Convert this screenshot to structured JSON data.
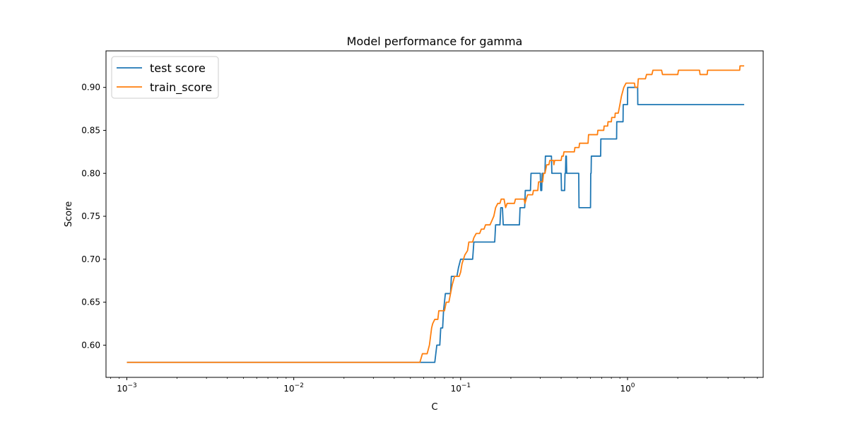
{
  "chart_data": {
    "type": "line",
    "title": "Model performance for gamma",
    "xlabel": "C",
    "ylabel": "Score",
    "xscale": "log",
    "xlim": [
      0.00075,
      6.5
    ],
    "ylim": [
      0.5625,
      0.9425
    ],
    "x_ticks": [
      {
        "value": 0.001,
        "base": "10",
        "exp": "−3"
      },
      {
        "value": 0.01,
        "base": "10",
        "exp": "−2"
      },
      {
        "value": 0.1,
        "base": "10",
        "exp": "−1"
      },
      {
        "value": 1,
        "base": "10",
        "exp": "0"
      }
    ],
    "y_ticks": [
      {
        "value": 0.6,
        "label": "0.60"
      },
      {
        "value": 0.65,
        "label": "0.65"
      },
      {
        "value": 0.7,
        "label": "0.70"
      },
      {
        "value": 0.75,
        "label": "0.75"
      },
      {
        "value": 0.8,
        "label": "0.80"
      },
      {
        "value": 0.85,
        "label": "0.85"
      },
      {
        "value": 0.9,
        "label": "0.90"
      }
    ],
    "legend_position": "top-left",
    "series": [
      {
        "name": "test score",
        "color": "#1f77b4",
        "points": [
          [
            0.001,
            0.58
          ],
          [
            0.057,
            0.58
          ],
          [
            0.07,
            0.58
          ],
          [
            0.072,
            0.6
          ],
          [
            0.075,
            0.6
          ],
          [
            0.076,
            0.62
          ],
          [
            0.078,
            0.62
          ],
          [
            0.079,
            0.64
          ],
          [
            0.081,
            0.66
          ],
          [
            0.087,
            0.66
          ],
          [
            0.088,
            0.68
          ],
          [
            0.095,
            0.68
          ],
          [
            0.097,
            0.69
          ],
          [
            0.1,
            0.7
          ],
          [
            0.118,
            0.7
          ],
          [
            0.12,
            0.72
          ],
          [
            0.16,
            0.72
          ],
          [
            0.162,
            0.74
          ],
          [
            0.172,
            0.74
          ],
          [
            0.174,
            0.76
          ],
          [
            0.178,
            0.76
          ],
          [
            0.18,
            0.74
          ],
          [
            0.225,
            0.74
          ],
          [
            0.227,
            0.76
          ],
          [
            0.242,
            0.76
          ],
          [
            0.244,
            0.78
          ],
          [
            0.262,
            0.78
          ],
          [
            0.264,
            0.8
          ],
          [
            0.3,
            0.8
          ],
          [
            0.302,
            0.78
          ],
          [
            0.306,
            0.78
          ],
          [
            0.308,
            0.8
          ],
          [
            0.32,
            0.8
          ],
          [
            0.322,
            0.82
          ],
          [
            0.35,
            0.82
          ],
          [
            0.352,
            0.8
          ],
          [
            0.4,
            0.8
          ],
          [
            0.402,
            0.78
          ],
          [
            0.42,
            0.78
          ],
          [
            0.422,
            0.8
          ],
          [
            0.425,
            0.8
          ],
          [
            0.427,
            0.82
          ],
          [
            0.43,
            0.82
          ],
          [
            0.432,
            0.8
          ],
          [
            0.51,
            0.8
          ],
          [
            0.512,
            0.76
          ],
          [
            0.6,
            0.76
          ],
          [
            0.602,
            0.8
          ],
          [
            0.605,
            0.8
          ],
          [
            0.607,
            0.82
          ],
          [
            0.69,
            0.82
          ],
          [
            0.692,
            0.84
          ],
          [
            0.86,
            0.84
          ],
          [
            0.862,
            0.86
          ],
          [
            0.94,
            0.86
          ],
          [
            0.942,
            0.88
          ],
          [
            1.0,
            0.88
          ],
          [
            1.002,
            0.9
          ],
          [
            1.15,
            0.9
          ],
          [
            1.152,
            0.88
          ],
          [
            5.0,
            0.88
          ]
        ]
      },
      {
        "name": "train_score",
        "color": "#ff7f0e",
        "points": [
          [
            0.001,
            0.58
          ],
          [
            0.057,
            0.58
          ],
          [
            0.059,
            0.59
          ],
          [
            0.063,
            0.59
          ],
          [
            0.065,
            0.6
          ],
          [
            0.066,
            0.61
          ],
          [
            0.067,
            0.62
          ],
          [
            0.068,
            0.625
          ],
          [
            0.07,
            0.63
          ],
          [
            0.073,
            0.63
          ],
          [
            0.074,
            0.64
          ],
          [
            0.08,
            0.64
          ],
          [
            0.082,
            0.65
          ],
          [
            0.085,
            0.65
          ],
          [
            0.087,
            0.66
          ],
          [
            0.089,
            0.67
          ],
          [
            0.092,
            0.68
          ],
          [
            0.098,
            0.68
          ],
          [
            0.1,
            0.685
          ],
          [
            0.102,
            0.695
          ],
          [
            0.104,
            0.7
          ],
          [
            0.106,
            0.705
          ],
          [
            0.11,
            0.71
          ],
          [
            0.112,
            0.72
          ],
          [
            0.118,
            0.72
          ],
          [
            0.12,
            0.725
          ],
          [
            0.124,
            0.73
          ],
          [
            0.13,
            0.73
          ],
          [
            0.133,
            0.735
          ],
          [
            0.138,
            0.735
          ],
          [
            0.141,
            0.74
          ],
          [
            0.15,
            0.74
          ],
          [
            0.154,
            0.745
          ],
          [
            0.158,
            0.75
          ],
          [
            0.162,
            0.76
          ],
          [
            0.167,
            0.765
          ],
          [
            0.172,
            0.765
          ],
          [
            0.175,
            0.77
          ],
          [
            0.182,
            0.77
          ],
          [
            0.186,
            0.76
          ],
          [
            0.19,
            0.765
          ],
          [
            0.21,
            0.765
          ],
          [
            0.213,
            0.77
          ],
          [
            0.24,
            0.77
          ],
          [
            0.243,
            0.765
          ],
          [
            0.247,
            0.77
          ],
          [
            0.252,
            0.775
          ],
          [
            0.27,
            0.775
          ],
          [
            0.273,
            0.78
          ],
          [
            0.29,
            0.78
          ],
          [
            0.293,
            0.79
          ],
          [
            0.31,
            0.79
          ],
          [
            0.314,
            0.8
          ],
          [
            0.32,
            0.8
          ],
          [
            0.324,
            0.805
          ],
          [
            0.328,
            0.81
          ],
          [
            0.338,
            0.81
          ],
          [
            0.342,
            0.815
          ],
          [
            0.36,
            0.815
          ],
          [
            0.362,
            0.81
          ],
          [
            0.366,
            0.815
          ],
          [
            0.4,
            0.815
          ],
          [
            0.404,
            0.82
          ],
          [
            0.412,
            0.82
          ],
          [
            0.416,
            0.825
          ],
          [
            0.48,
            0.825
          ],
          [
            0.484,
            0.83
          ],
          [
            0.512,
            0.83
          ],
          [
            0.516,
            0.835
          ],
          [
            0.58,
            0.835
          ],
          [
            0.584,
            0.845
          ],
          [
            0.66,
            0.845
          ],
          [
            0.664,
            0.85
          ],
          [
            0.72,
            0.85
          ],
          [
            0.724,
            0.855
          ],
          [
            0.76,
            0.855
          ],
          [
            0.764,
            0.86
          ],
          [
            0.8,
            0.86
          ],
          [
            0.804,
            0.865
          ],
          [
            0.84,
            0.865
          ],
          [
            0.844,
            0.87
          ],
          [
            0.88,
            0.87
          ],
          [
            0.9,
            0.88
          ],
          [
            0.92,
            0.89
          ],
          [
            0.95,
            0.9
          ],
          [
            0.98,
            0.905
          ],
          [
            1.1,
            0.905
          ],
          [
            1.11,
            0.9
          ],
          [
            1.15,
            0.9
          ],
          [
            1.16,
            0.91
          ],
          [
            1.28,
            0.91
          ],
          [
            1.3,
            0.915
          ],
          [
            1.4,
            0.915
          ],
          [
            1.42,
            0.92
          ],
          [
            1.6,
            0.92
          ],
          [
            1.62,
            0.915
          ],
          [
            2.0,
            0.915
          ],
          [
            2.02,
            0.92
          ],
          [
            2.7,
            0.92
          ],
          [
            2.72,
            0.915
          ],
          [
            3.0,
            0.915
          ],
          [
            3.02,
            0.92
          ],
          [
            4.7,
            0.92
          ],
          [
            4.72,
            0.925
          ],
          [
            5.0,
            0.925
          ]
        ]
      }
    ]
  }
}
